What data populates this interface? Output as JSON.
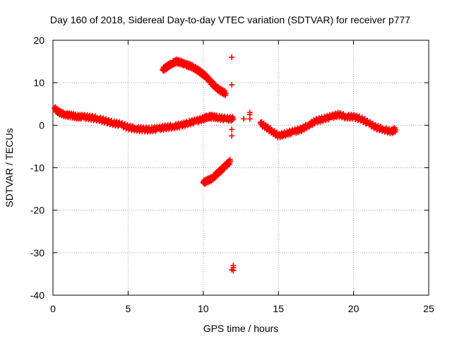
{
  "chart_data": {
    "type": "scatter",
    "title": "Day 160 of 2018, Sidereal Day-to-day VTEC variation (SDTVAR) for receiver p777",
    "xlabel": "GPS time / hours",
    "ylabel": "SDTVAR / TECUs",
    "xlim": [
      0,
      25
    ],
    "ylim": [
      -40,
      20
    ],
    "xticks": [
      0,
      5,
      10,
      15,
      20,
      25
    ],
    "yticks": [
      -40,
      -30,
      -20,
      -10,
      0,
      10,
      20
    ],
    "grid": true,
    "marker": "+",
    "series": [
      {
        "name": "main-trace",
        "color": "#ff0000",
        "x": [
          0.1,
          0.4,
          0.8,
          1.2,
          1.6,
          2.0,
          2.5,
          3.0,
          3.5,
          4.0,
          4.5,
          5.0,
          5.5,
          6.0,
          6.5,
          7.0,
          7.5,
          8.0,
          8.5,
          9.0,
          9.5,
          10.0,
          10.3,
          10.6,
          11.0,
          11.5,
          12.0
        ],
        "y": [
          4.0,
          3.0,
          2.5,
          2.3,
          2.0,
          2.0,
          1.8,
          1.5,
          1.0,
          0.5,
          0.2,
          -0.5,
          -0.8,
          -1.0,
          -1.0,
          -0.8,
          -0.5,
          -0.3,
          0.0,
          0.5,
          1.0,
          1.5,
          2.0,
          2.0,
          1.8,
          1.5,
          1.5
        ]
      },
      {
        "name": "after-gap-trace",
        "color": "#ff0000",
        "x": [
          13.8,
          14.2,
          14.6,
          15.0,
          15.5,
          16.0,
          16.5,
          17.0,
          17.5,
          18.0,
          18.5,
          19.0,
          19.5,
          20.0,
          20.5,
          21.0,
          21.5,
          22.0,
          22.5,
          22.8
        ],
        "y": [
          0.5,
          -0.5,
          -1.5,
          -2.5,
          -2.0,
          -1.5,
          -1.0,
          0.0,
          1.0,
          1.5,
          2.0,
          2.5,
          2.0,
          2.0,
          1.5,
          0.5,
          -0.5,
          -1.0,
          -1.5,
          -1.0
        ]
      },
      {
        "name": "upper-arc",
        "color": "#ff0000",
        "x": [
          7.3,
          7.6,
          7.9,
          8.2,
          8.5,
          8.8,
          9.1,
          9.4,
          9.7,
          10.0,
          10.3,
          10.6,
          10.9,
          11.2,
          11.5
        ],
        "y": [
          13.0,
          13.8,
          14.5,
          15.0,
          14.8,
          14.3,
          14.0,
          13.5,
          12.8,
          12.0,
          11.0,
          9.8,
          8.8,
          8.0,
          7.5
        ]
      },
      {
        "name": "lower-line",
        "color": "#ff0000",
        "x": [
          10.0,
          10.3,
          10.6,
          10.9,
          11.2,
          11.5,
          11.8
        ],
        "y": [
          -13.5,
          -13.0,
          -12.5,
          -11.5,
          -10.5,
          -9.5,
          -8.5
        ]
      },
      {
        "name": "isolated-points",
        "color": "#ff0000",
        "x": [
          11.9,
          11.9,
          11.9,
          11.9,
          11.9,
          12.0,
          12.0,
          12.0,
          13.1,
          13.1,
          13.1,
          12.7
        ],
        "y": [
          16.0,
          9.5,
          -1.0,
          -2.5,
          -34.0,
          -33.5,
          -33.0,
          -34.2,
          2.5,
          1.5,
          3.0,
          1.5
        ]
      }
    ]
  }
}
